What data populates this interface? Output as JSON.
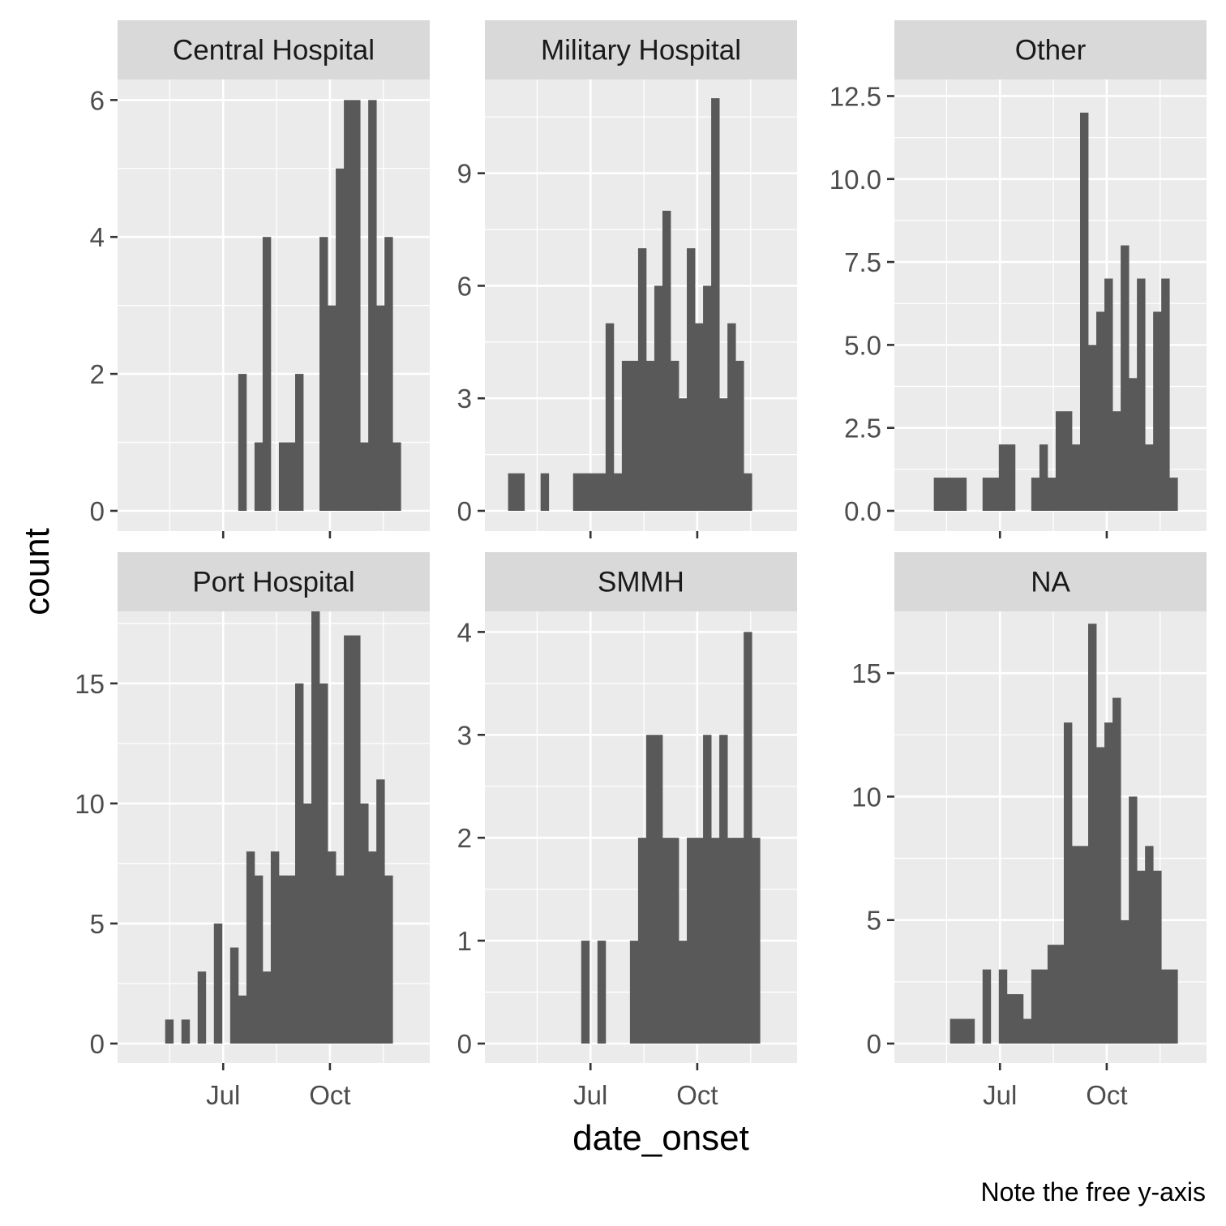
{
  "chart_data": {
    "type": "bar",
    "xlabel": "date_onset",
    "ylabel": "count",
    "caption": "Note the free y-axis",
    "x_ticks": [
      {
        "label": "Jul",
        "date": "2014-07-01"
      },
      {
        "label": "Oct",
        "date": "2014-10-01"
      }
    ],
    "xlim": [
      "2014-04-01",
      "2014-12-26"
    ],
    "bin_start": "2014-04-21",
    "bin_width_days": 7,
    "facets": [
      {
        "name": "Central Hospital",
        "ylim": [
          0,
          6.3
        ],
        "y_ticks": [
          0,
          2,
          4,
          6
        ],
        "values": [
          0,
          0,
          0,
          0,
          0,
          0,
          0,
          0,
          0,
          0,
          0,
          0,
          2,
          0,
          1,
          4,
          0,
          1,
          1,
          2,
          0,
          0,
          4,
          3,
          5,
          6,
          6,
          1,
          6,
          3,
          4,
          1
        ]
      },
      {
        "name": "Military Hospital",
        "ylim": [
          0,
          11.5
        ],
        "y_ticks": [
          0,
          3,
          6,
          9
        ],
        "values": [
          1,
          1,
          0,
          0,
          1,
          0,
          0,
          0,
          1,
          1,
          1,
          1,
          5,
          1,
          4,
          4,
          7,
          4,
          6,
          8,
          4,
          3,
          7,
          5,
          6,
          11,
          3,
          5,
          4,
          1
        ]
      },
      {
        "name": "Other",
        "ylim": [
          0,
          13.0
        ],
        "y_ticks": [
          0.0,
          2.5,
          5.0,
          7.5,
          10.0,
          12.5
        ],
        "tick_labels": [
          "0.0",
          "2.5",
          "5.0",
          "7.5",
          "10.0",
          "12.5"
        ],
        "values": [
          0,
          0,
          1,
          1,
          1,
          1,
          0,
          0,
          1,
          1,
          2,
          2,
          0,
          0,
          1,
          2,
          1,
          3,
          3,
          2,
          12,
          5,
          6,
          7,
          3,
          8,
          4,
          7,
          2,
          6,
          7,
          1
        ]
      },
      {
        "name": "Port Hospital",
        "ylim": [
          0,
          18.0
        ],
        "y_ticks": [
          0,
          5,
          10,
          15
        ],
        "values": [
          0,
          0,
          0,
          1,
          0,
          1,
          0,
          3,
          0,
          5,
          0,
          4,
          2,
          8,
          7,
          3,
          8,
          7,
          7,
          15,
          10,
          18,
          15,
          8,
          7,
          17,
          17,
          10,
          8,
          11,
          7
        ]
      },
      {
        "name": "SMMH",
        "ylim": [
          0,
          4.2
        ],
        "y_ticks": [
          0,
          1,
          2,
          3,
          4
        ],
        "values": [
          0,
          0,
          0,
          0,
          0,
          0,
          0,
          0,
          0,
          1,
          0,
          1,
          0,
          0,
          0,
          1,
          2,
          3,
          3,
          2,
          2,
          1,
          2,
          2,
          3,
          2,
          3,
          2,
          2,
          4,
          2
        ]
      },
      {
        "name": "NA",
        "ylim": [
          0,
          17.5
        ],
        "y_ticks": [
          0,
          5,
          10,
          15
        ],
        "values": [
          0,
          0,
          0,
          0,
          1,
          1,
          1,
          0,
          3,
          0,
          3,
          2,
          2,
          1,
          3,
          3,
          4,
          4,
          13,
          8,
          8,
          17,
          12,
          13,
          14,
          5,
          10,
          7,
          8,
          7,
          3,
          3
        ]
      }
    ]
  }
}
